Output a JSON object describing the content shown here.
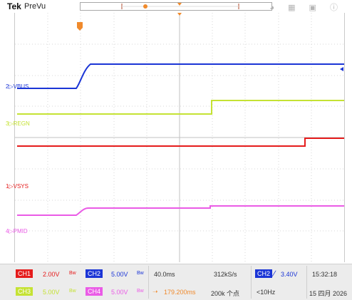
{
  "topbar": {
    "brand": "Tek",
    "mode": "PreVu",
    "icons": [
      "wifi-icon",
      "network-icon",
      "window-icon",
      "help-icon"
    ]
  },
  "channels": {
    "ch1": {
      "label": "VSYS",
      "marker": "1",
      "color": "#e51c1c",
      "scale": "2.00V"
    },
    "ch2": {
      "label": "VBUS",
      "marker": "2",
      "color": "#1b35d6",
      "scale": "5.00V"
    },
    "ch3": {
      "label": "REGN",
      "marker": "3",
      "color": "#c5e234",
      "scale": "5.00V"
    },
    "ch4": {
      "label": "PMID",
      "marker": "4",
      "color": "#ea5be6",
      "scale": "5.00V"
    }
  },
  "horizontal": {
    "time_scale": "40.0ms",
    "trigger_position": "179.200ms",
    "sample_rate": "312kS/s",
    "record_length": "200k 个点"
  },
  "trigger": {
    "source": "CH2",
    "level": "3.40V",
    "frequency": "<10Hz"
  },
  "clock": {
    "time": "15:32:18",
    "date": "15 四月 2026"
  },
  "bottom": {
    "ch1_badge": "CH1",
    "ch2_badge": "CH2",
    "ch3_badge": "CH3",
    "ch4_badge": "CH4",
    "bw_symbol": "Bw"
  }
}
